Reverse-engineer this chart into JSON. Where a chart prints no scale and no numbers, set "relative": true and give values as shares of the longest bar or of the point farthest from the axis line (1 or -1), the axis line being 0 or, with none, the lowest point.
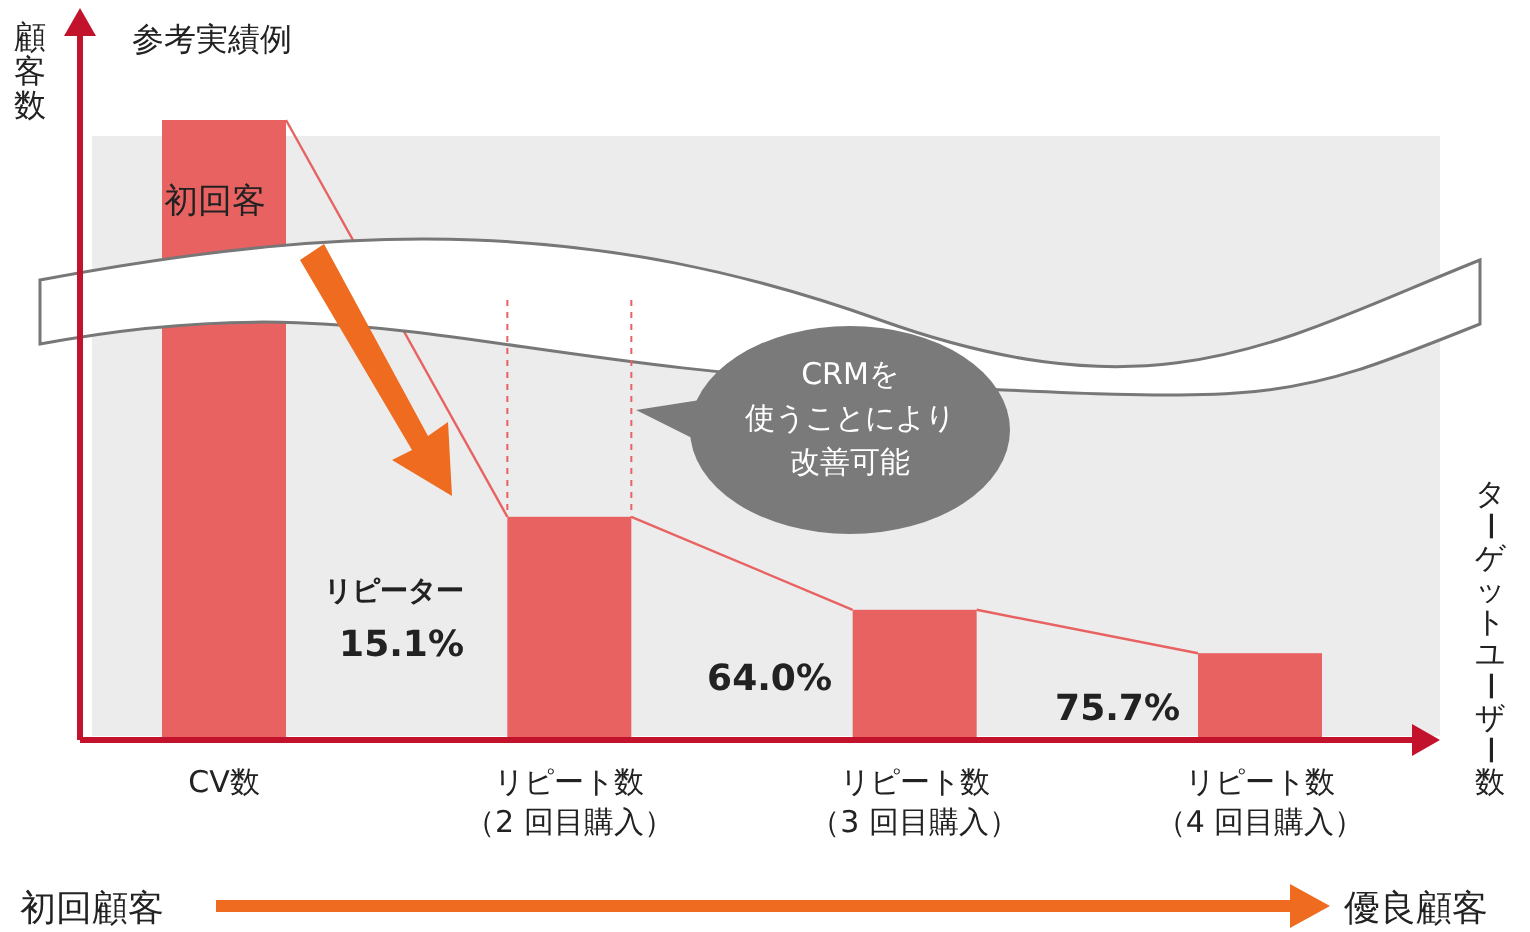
{
  "chart_data": {
    "type": "bar",
    "title": "参考実績例",
    "ylabel": "顧客数",
    "categories": [
      "CV数",
      "リピート数（2 回目購入）",
      "リピート数（3 回目購入）",
      "リピート数（4 回目購入）"
    ],
    "values": [
      1,
      0.36,
      0.21,
      0.14
    ],
    "color": "#e86262",
    "relative": true,
    "annotations": [
      "初回客",
      "リピーター",
      "15.1%",
      "64.0%",
      "75.7%",
      "CRMを使うことにより改善可能",
      "初回顧客",
      "優良顧客",
      "ターゲットユーザー数"
    ]
  }
}
